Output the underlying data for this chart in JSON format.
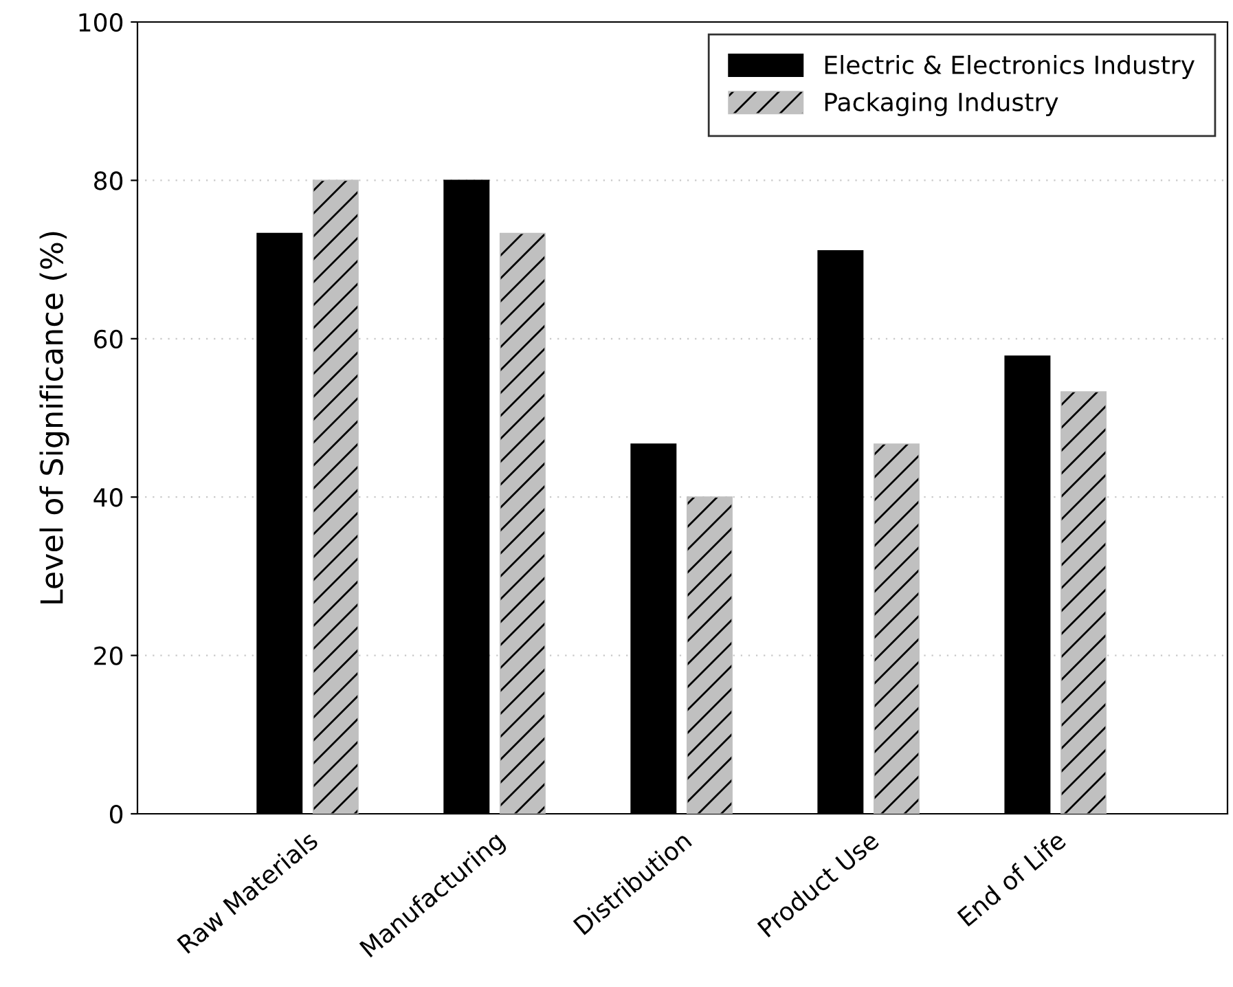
{
  "chart_data": {
    "type": "bar",
    "ylabel": "Level of Significance (%)",
    "categories": [
      "Raw Materials",
      "Manufacturing",
      "Distribution",
      "Product Use",
      "End of Life"
    ],
    "series": [
      {
        "name": "Electric & Electronics Industry",
        "color": "#000000",
        "values": [
          73.3,
          80,
          46.7,
          71.1,
          57.8
        ]
      },
      {
        "name": "Packaging Industry",
        "color": "#c0c0c0",
        "values": [
          80,
          73.3,
          40,
          46.7,
          53.3
        ]
      }
    ],
    "ylim": [
      0,
      100
    ],
    "yticks": [
      0,
      20,
      40,
      60,
      80,
      100
    ],
    "grid": "y",
    "legend": "top right"
  }
}
